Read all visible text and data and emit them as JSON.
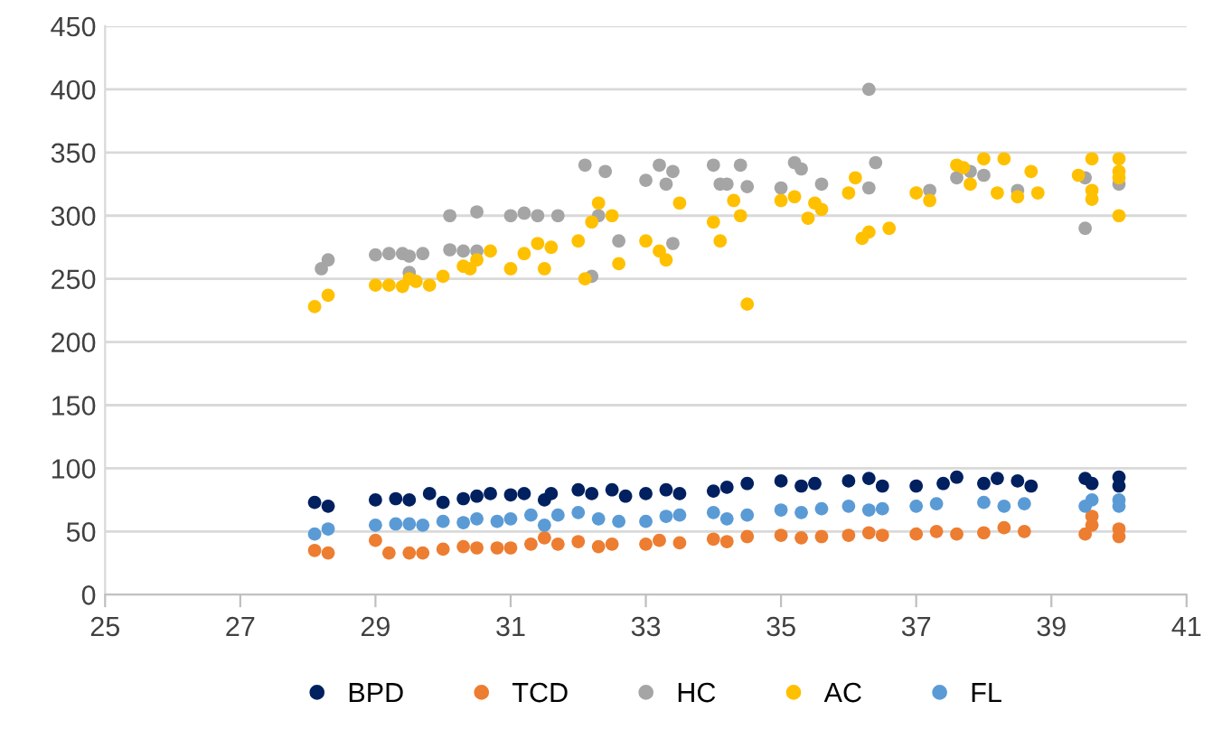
{
  "chart_data": {
    "type": "scatter",
    "xlim": [
      25,
      41
    ],
    "xticks": [
      25,
      27,
      29,
      31,
      33,
      35,
      37,
      39,
      41
    ],
    "ylim": [
      0,
      450
    ],
    "yticks": [
      0,
      50,
      100,
      150,
      200,
      250,
      300,
      350,
      400,
      450
    ],
    "grid": "y",
    "legend": "bottom",
    "marker": "circle",
    "series": [
      {
        "name": "BPD",
        "color": "#002060",
        "x": [
          28.1,
          28.3,
          29.0,
          29.3,
          29.5,
          29.8,
          30.0,
          30.3,
          30.5,
          30.7,
          31.0,
          31.2,
          31.5,
          31.6,
          32.0,
          32.2,
          32.5,
          32.7,
          33.0,
          33.3,
          33.5,
          34.0,
          34.2,
          34.5,
          35.0,
          35.3,
          35.5,
          36.0,
          36.3,
          36.5,
          37.0,
          37.4,
          37.6,
          38.0,
          38.2,
          38.5,
          38.7,
          39.5,
          39.6,
          40.0,
          40.0
        ],
        "values": [
          73,
          70,
          75,
          76,
          75,
          80,
          73,
          76,
          78,
          80,
          79,
          80,
          75,
          80,
          83,
          80,
          83,
          78,
          80,
          83,
          80,
          82,
          85,
          88,
          90,
          86,
          88,
          90,
          92,
          86,
          86,
          88,
          93,
          88,
          92,
          90,
          86,
          92,
          88,
          93,
          86
        ]
      },
      {
        "name": "TCD",
        "color": "#ed7d31",
        "x": [
          28.1,
          28.3,
          29.0,
          29.2,
          29.5,
          29.7,
          30.0,
          30.3,
          30.5,
          30.8,
          31.0,
          31.3,
          31.5,
          31.7,
          32.0,
          32.3,
          32.5,
          33.0,
          33.2,
          33.5,
          34.0,
          34.2,
          34.5,
          35.0,
          35.3,
          35.6,
          36.0,
          36.3,
          36.5,
          37.0,
          37.3,
          37.6,
          38.0,
          38.3,
          38.6,
          39.5,
          39.6,
          39.6,
          40.0,
          40.0
        ],
        "values": [
          35,
          33,
          43,
          33,
          33,
          33,
          36,
          38,
          37,
          37,
          37,
          40,
          45,
          40,
          42,
          38,
          40,
          40,
          43,
          41,
          44,
          42,
          46,
          47,
          45,
          46,
          47,
          49,
          47,
          48,
          50,
          48,
          49,
          53,
          50,
          48,
          55,
          62,
          52,
          46
        ]
      },
      {
        "name": "HC",
        "color": "#a5a5a5",
        "x": [
          28.2,
          28.3,
          29.0,
          29.2,
          29.4,
          29.5,
          29.5,
          29.7,
          30.1,
          30.1,
          30.3,
          30.5,
          30.5,
          31.0,
          31.2,
          31.4,
          31.7,
          32.1,
          32.3,
          32.4,
          32.2,
          32.6,
          33.0,
          33.2,
          33.3,
          33.4,
          33.4,
          34.0,
          34.1,
          34.2,
          34.4,
          34.5,
          35.0,
          35.2,
          35.3,
          35.6,
          36.3,
          36.4,
          36.3,
          37.2,
          37.6,
          37.8,
          38.0,
          38.5,
          39.5,
          39.5,
          40.0
        ],
        "values": [
          258,
          265,
          269,
          270,
          270,
          255,
          268,
          270,
          300,
          273,
          272,
          303,
          272,
          300,
          302,
          300,
          300,
          340,
          300,
          335,
          252,
          280,
          328,
          340,
          325,
          335,
          278,
          340,
          325,
          325,
          340,
          323,
          322,
          342,
          337,
          325,
          400,
          342,
          322,
          320,
          330,
          335,
          332,
          320,
          290,
          330,
          325
        ]
      },
      {
        "name": "AC",
        "color": "#ffc000",
        "x": [
          28.1,
          28.3,
          29.0,
          29.2,
          29.4,
          29.5,
          29.6,
          29.8,
          30.0,
          30.3,
          30.4,
          30.5,
          30.7,
          31.0,
          31.2,
          31.4,
          31.5,
          31.6,
          32.0,
          32.2,
          32.3,
          32.5,
          32.6,
          32.1,
          33.0,
          33.2,
          33.5,
          33.3,
          34.0,
          34.1,
          34.3,
          34.5,
          34.4,
          35.0,
          35.2,
          35.4,
          35.5,
          35.6,
          36.0,
          36.1,
          36.2,
          36.3,
          36.6,
          37.0,
          37.2,
          37.6,
          37.7,
          37.8,
          38.0,
          38.3,
          38.2,
          38.5,
          38.7,
          38.8,
          39.4,
          39.6,
          39.6,
          39.6,
          40.0,
          40.0,
          40.0,
          40.0
        ],
        "values": [
          228,
          237,
          245,
          245,
          244,
          250,
          248,
          245,
          252,
          260,
          258,
          265,
          272,
          258,
          270,
          278,
          258,
          275,
          280,
          295,
          310,
          300,
          262,
          250,
          280,
          272,
          310,
          265,
          295,
          280,
          312,
          230,
          300,
          312,
          315,
          298,
          310,
          305,
          318,
          330,
          282,
          287,
          290,
          318,
          312,
          340,
          338,
          325,
          345,
          345,
          318,
          315,
          335,
          318,
          332,
          345,
          320,
          313,
          345,
          330,
          335,
          300
        ]
      },
      {
        "name": "FL",
        "color": "#5b9bd5",
        "x": [
          28.1,
          28.3,
          29.0,
          29.3,
          29.5,
          29.7,
          30.0,
          30.3,
          30.5,
          30.8,
          31.0,
          31.3,
          31.5,
          31.7,
          32.0,
          32.3,
          32.6,
          33.0,
          33.3,
          33.5,
          34.0,
          34.2,
          34.5,
          35.0,
          35.3,
          35.6,
          36.0,
          36.3,
          36.5,
          37.0,
          37.3,
          38.0,
          38.3,
          38.6,
          39.5,
          39.6,
          40.0,
          40.0
        ],
        "values": [
          48,
          52,
          55,
          56,
          56,
          55,
          58,
          57,
          60,
          58,
          60,
          63,
          55,
          63,
          65,
          60,
          58,
          58,
          62,
          63,
          65,
          60,
          63,
          67,
          65,
          68,
          70,
          67,
          68,
          70,
          72,
          73,
          70,
          72,
          70,
          75,
          75,
          70
        ]
      }
    ]
  }
}
